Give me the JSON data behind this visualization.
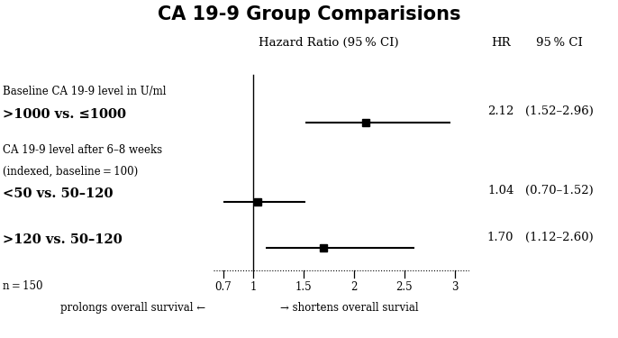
{
  "title": "CA 19-9 Group Comparisions",
  "col_header_left": "Hazard Ratio (95 % CI)",
  "col_header_hr": "HR",
  "col_header_ci": "95 % CI",
  "rows": [
    {
      "label_sub": "Baseline CA 19-9 level in U/ml",
      "label_bold": ">1000 vs. ≤1000",
      "hr": 2.12,
      "ci_lo": 1.52,
      "ci_hi": 2.96,
      "hr_text": "2.12",
      "ci_text": "(1.52–2.96)"
    },
    {
      "label_sub": "CA 19-9 level after 6–8 weeks\n(indexed, baseline = 100)",
      "label_bold": "<50 vs. 50–120",
      "hr": 1.04,
      "ci_lo": 0.7,
      "ci_hi": 1.52,
      "hr_text": "1.04",
      "ci_text": "(0.70–1.52)"
    },
    {
      "label_sub": null,
      "label_bold": ">120 vs. 50–120",
      "hr": 1.7,
      "ci_lo": 1.12,
      "ci_hi": 2.6,
      "hr_text": "1.70",
      "ci_text": "(1.12–2.60)"
    }
  ],
  "x_ticks": [
    0.7,
    1.0,
    1.5,
    2.0,
    2.5,
    3.0
  ],
  "x_tick_labels": [
    "0.7",
    "1",
    "1.5",
    "2",
    "2.5",
    "3"
  ],
  "xmin": 0.6,
  "xmax": 3.15,
  "n_text": "n = 150",
  "footer_left": "prolongs overall survival ←",
  "footer_right": "→ shortens overall survial",
  "ref_line_x": 1.0,
  "background_color": "#ffffff",
  "text_color": "#000000"
}
